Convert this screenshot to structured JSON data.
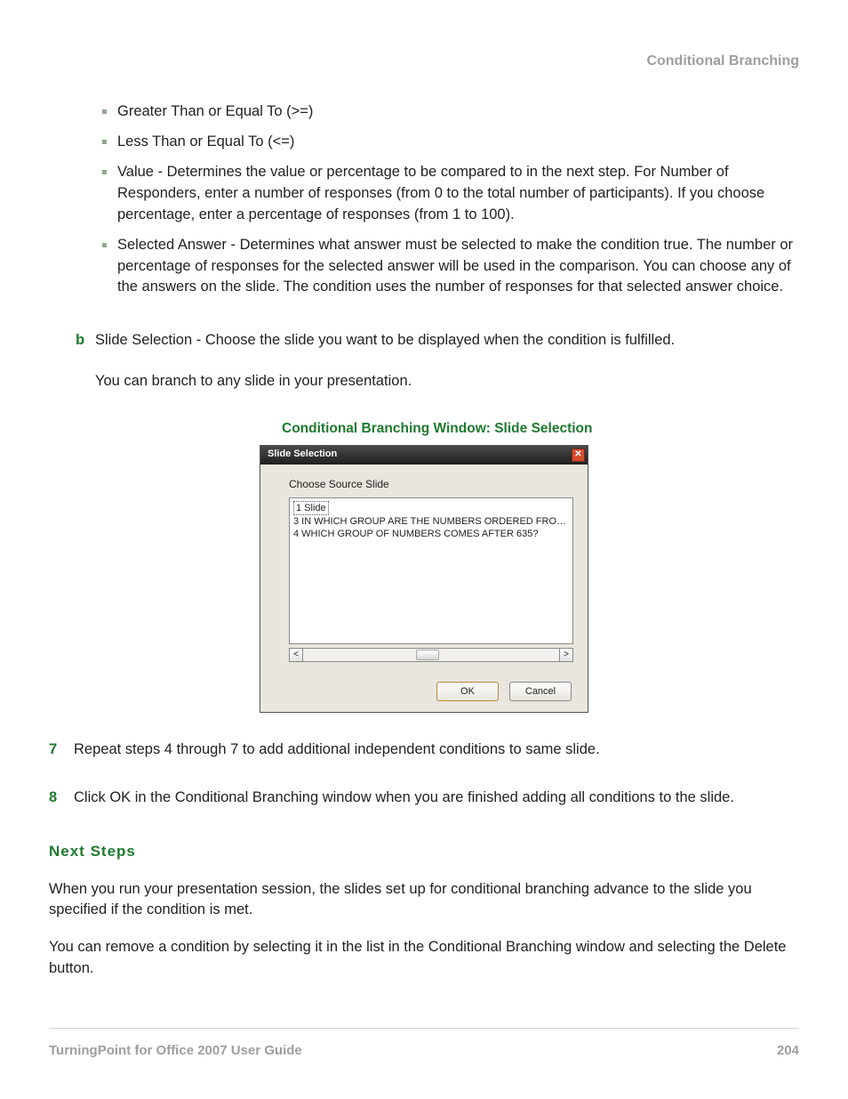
{
  "colors": {
    "heading_gray": "#9e9e9e",
    "body_text": "#222222",
    "accent_green": "#1e7a2e",
    "bullet_green": "#8fa88c",
    "dialog_body_bg": "#e9e6de",
    "dialog_titlebar_top": "#4a4a4a",
    "dialog_titlebar_bottom": "#1f1f1f",
    "dialog_close_bg": "#d84b2f",
    "ok_button_border": "#b58b3a",
    "footer_rule": "#d0d0d0"
  },
  "typography": {
    "body_fontsize_pt": 12,
    "caption_fontsize_pt": 11.5,
    "dialog_fontsize_pt": 8.5
  },
  "header": {
    "section_title": "Conditional Branching"
  },
  "bullets": [
    "Greater Than or Equal To (>=)",
    "Less Than or Equal To (<=)",
    "Value - Determines the value or percentage to be compared to in the next step. For Number of Responders, enter a number of responses (from 0 to the total number of participants). If you choose percentage, enter a percentage of responses (from 1 to 100).",
    "Selected Answer - Determines what answer must be selected to make the condition true. The number or percentage of responses for the selected answer will be used in the comparison. You can choose any of the answers on the slide. The condition uses the number of responses for that selected answer choice."
  ],
  "letter_item": {
    "letter": "b",
    "text": "Slide Selection - Choose the slide you want to be displayed when the condition is fulfilled.",
    "followup": "You can branch to any slide in your presentation."
  },
  "figure": {
    "caption": "Conditional Branching Window: Slide Selection",
    "dialog": {
      "title": "Slide Selection",
      "close_glyph": "✕",
      "label": "Choose Source Slide",
      "items": [
        "1 Slide",
        "3 IN WHICH GROUP ARE THE NUMBERS ORDERED FROM S...",
        "4 WHICH GROUP OF NUMBERS COMES AFTER 635?"
      ],
      "selected_index": 0,
      "scroll_left_glyph": "<",
      "scroll_right_glyph": ">",
      "ok_label": "OK",
      "cancel_label": "Cancel"
    }
  },
  "numbered": [
    {
      "n": "7",
      "text": "Repeat steps 4 through 7 to add additional independent conditions to same slide."
    },
    {
      "n": "8",
      "text": "Click OK in the Conditional Branching window when you are finished adding all conditions to the slide."
    }
  ],
  "next_steps": {
    "heading": "Next Steps",
    "paras": [
      "When you run your presentation session, the slides set up for conditional branching advance to the slide you specified if the condition is met.",
      "You can remove a condition by selecting it in the list in the Conditional Branching window and selecting the Delete button."
    ]
  },
  "footer": {
    "left": "TurningPoint for Office 2007 User Guide",
    "page": "204"
  }
}
